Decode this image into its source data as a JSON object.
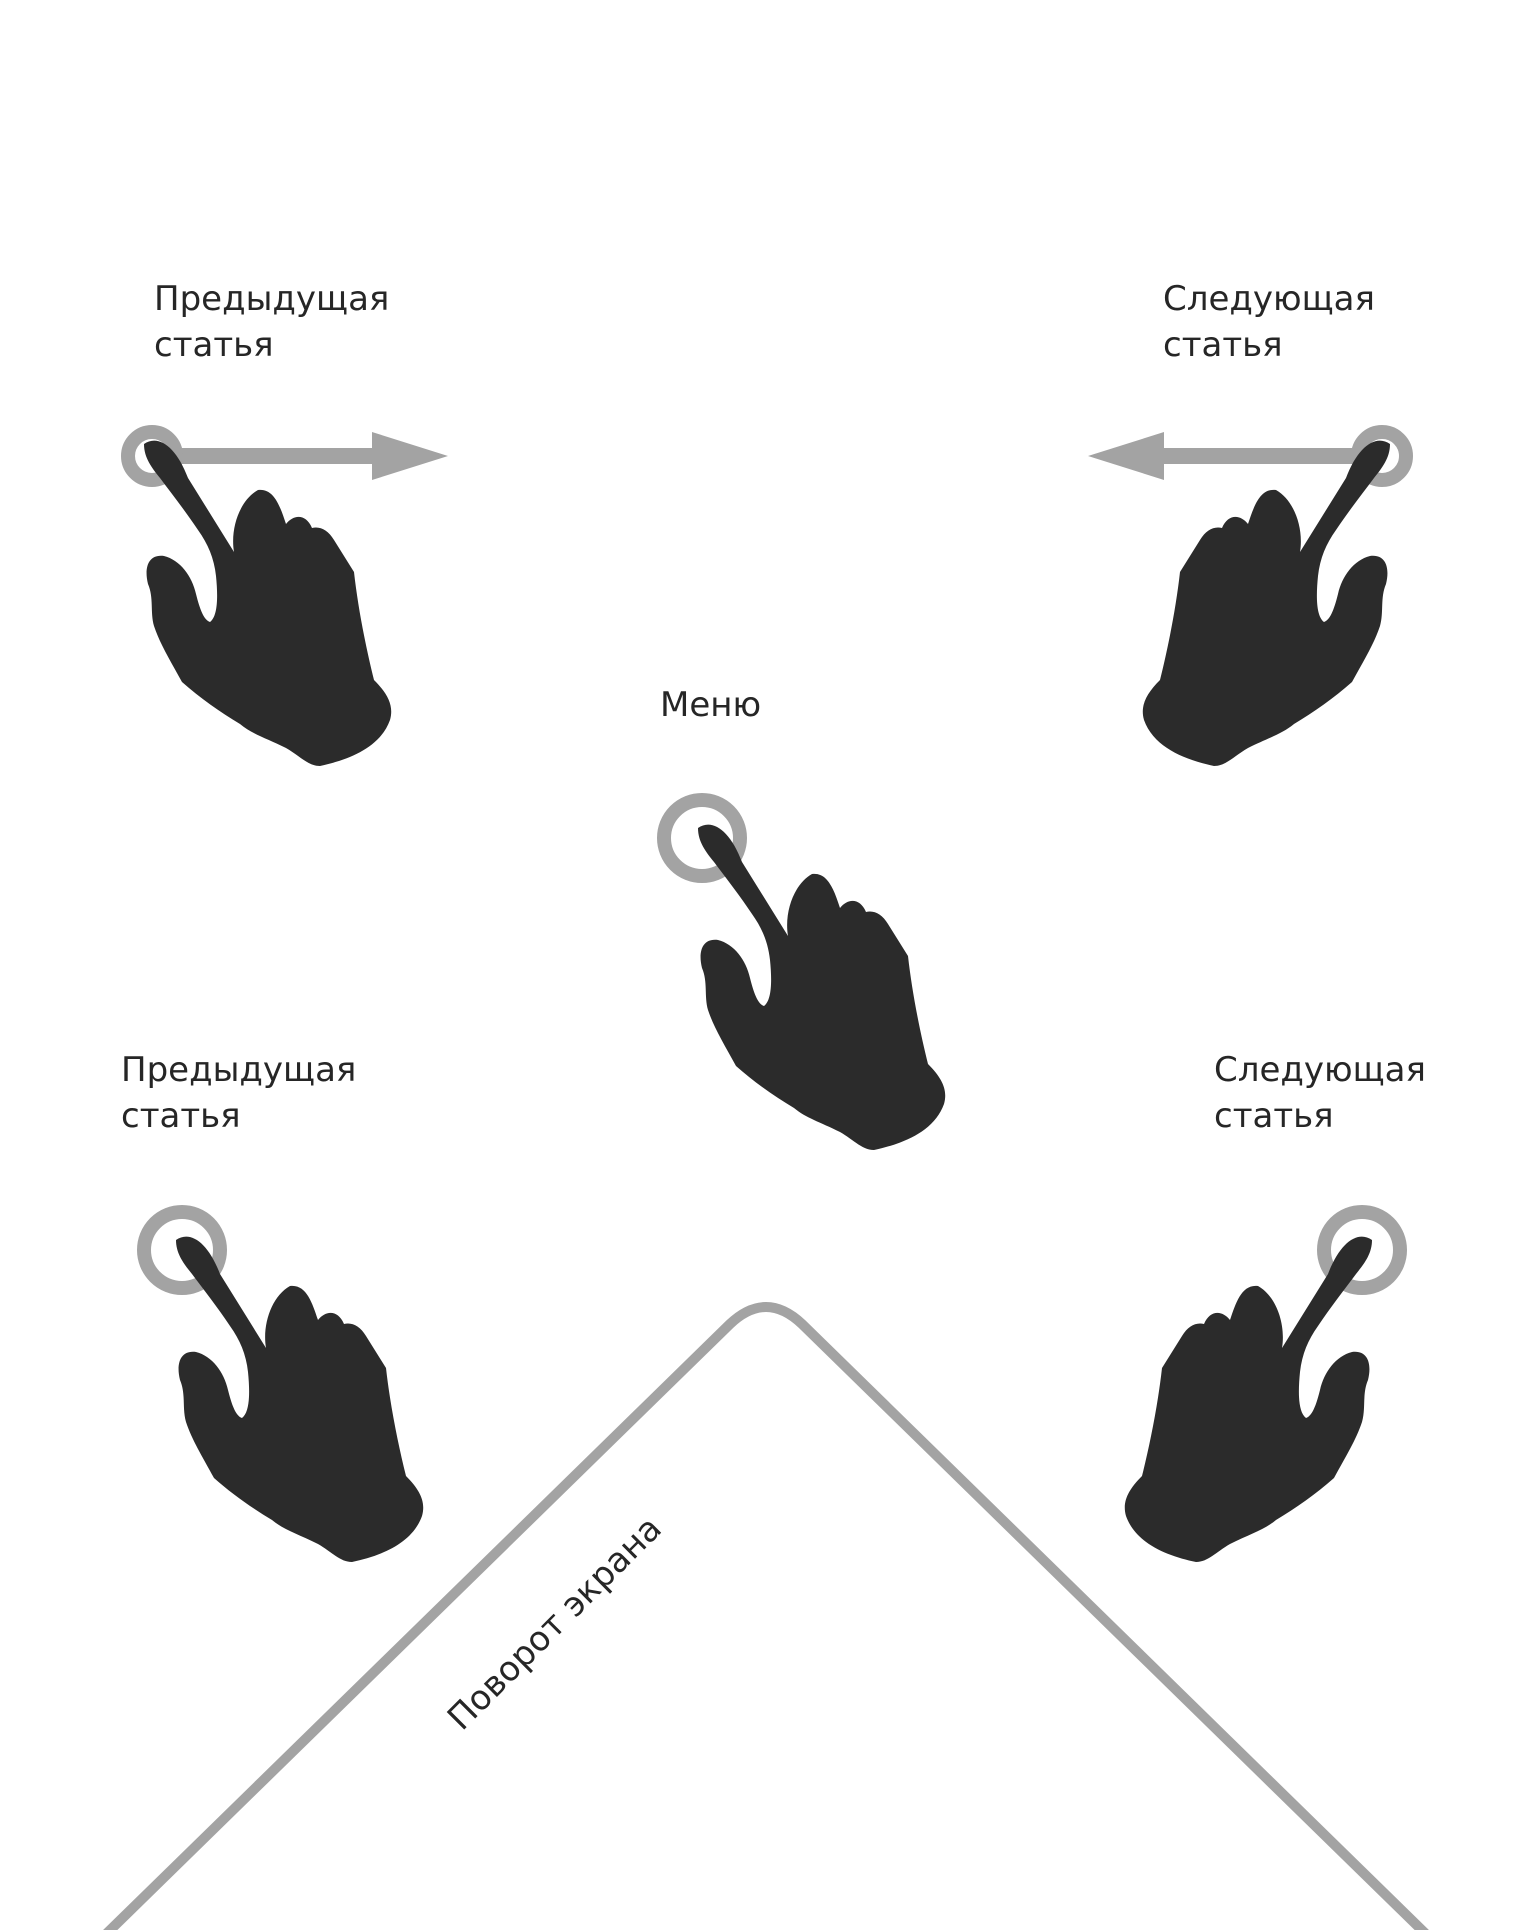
{
  "gestures": {
    "swipe_prev": {
      "line1": "Предыдущая",
      "line2": "статья"
    },
    "swipe_next": {
      "line1": "Следующая",
      "line2": "статья"
    },
    "tap_menu": {
      "label": "Меню"
    },
    "tap_prev": {
      "line1": "Предыдущая",
      "line2": "статья"
    },
    "tap_next": {
      "line1": "Следующая",
      "line2": "статья"
    },
    "rotate": {
      "label": "Поворот экрана"
    }
  },
  "icons": [
    "hand-pointer-icon",
    "swipe-right-arrow-icon",
    "swipe-left-arrow-icon",
    "tap-ring-icon",
    "rotate-frame-icon"
  ],
  "colors": {
    "hand": "#2b2b2b",
    "accent_gray": "#a3a3a3",
    "text": "#262626",
    "background": "#ffffff"
  }
}
